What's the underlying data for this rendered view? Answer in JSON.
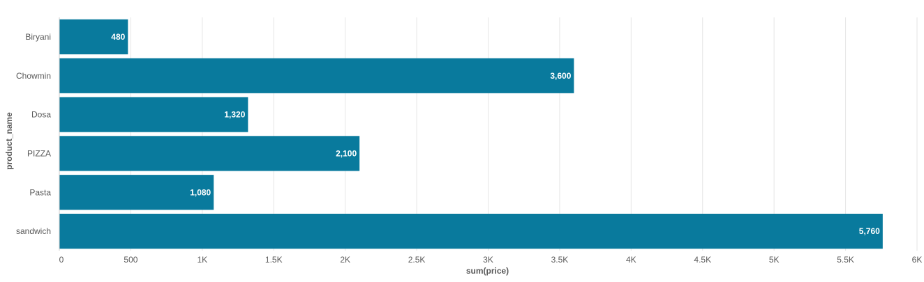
{
  "chart_data": {
    "type": "bar",
    "orientation": "horizontal",
    "categories": [
      "Biryani",
      "Chowmin",
      "Dosa",
      "PIZZA",
      "Pasta",
      "sandwich"
    ],
    "values": [
      480,
      3600,
      1320,
      2100,
      1080,
      5760
    ],
    "value_labels": [
      "480",
      "3,600",
      "1,320",
      "2,100",
      "1,080",
      "5,760"
    ],
    "xlabel": "sum(price)",
    "ylabel": "product_name",
    "xlim": [
      0,
      6000
    ],
    "x_ticks": [
      0,
      500,
      1000,
      1500,
      2000,
      2500,
      3000,
      3500,
      4000,
      4500,
      5000,
      5500,
      6000
    ],
    "x_tick_labels": [
      "0",
      "500",
      "1K",
      "1.5K",
      "2K",
      "2.5K",
      "3K",
      "3.5K",
      "4K",
      "4.5K",
      "5K",
      "5.5K",
      "6K"
    ],
    "grid": true,
    "legend": "none",
    "bar_color": "#097a9d"
  }
}
